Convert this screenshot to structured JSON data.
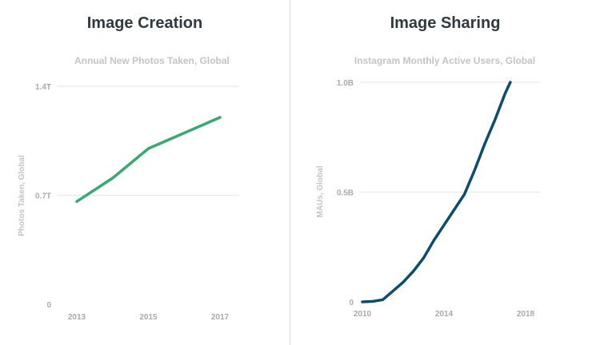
{
  "panels": {
    "left": {
      "heading": "Image Creation"
    },
    "right": {
      "heading": "Image Sharing"
    }
  },
  "chart_data": [
    {
      "type": "line",
      "title": "Annual New Photos Taken, Global",
      "ylabel": "Photos Taken, Global",
      "xlabel": "",
      "x": [
        2013,
        2014,
        2015,
        2016,
        2017
      ],
      "x_tick_labels": [
        "2013",
        "2015",
        "2017"
      ],
      "y_tick_labels": [
        "0",
        "0.7T",
        "1.4T"
      ],
      "ylim": [
        0,
        1.4
      ],
      "y_unit": "trillion photos",
      "series": [
        {
          "values": [
            0.66,
            0.81,
            1.0,
            1.1,
            1.2
          ],
          "color": "#3aa873"
        }
      ],
      "grid": true
    },
    {
      "type": "line",
      "title": "Instagram Monthly Active Users, Global",
      "ylabel": "MAUs, Global",
      "xlabel": "",
      "x_tick_labels": [
        "2010",
        "2014",
        "2018"
      ],
      "y_tick_labels": [
        "0",
        "0.5B",
        "1.0B"
      ],
      "xlim": [
        2010,
        2018
      ],
      "ylim": [
        0,
        1.0
      ],
      "y_unit": "billion users",
      "series": [
        {
          "points": [
            [
              2010.0,
              0.0
            ],
            [
              2010.5,
              0.002
            ],
            [
              2011.0,
              0.01
            ],
            [
              2011.5,
              0.05
            ],
            [
              2012.0,
              0.09
            ],
            [
              2012.5,
              0.14
            ],
            [
              2013.0,
              0.2
            ],
            [
              2013.5,
              0.28
            ],
            [
              2014.0,
              0.35
            ],
            [
              2014.5,
              0.42
            ],
            [
              2015.0,
              0.49
            ],
            [
              2015.5,
              0.6
            ],
            [
              2016.0,
              0.72
            ],
            [
              2016.5,
              0.83
            ],
            [
              2017.0,
              0.95
            ],
            [
              2017.25,
              1.0
            ]
          ],
          "color": "#0f4c6b"
        }
      ],
      "grid": true
    }
  ]
}
